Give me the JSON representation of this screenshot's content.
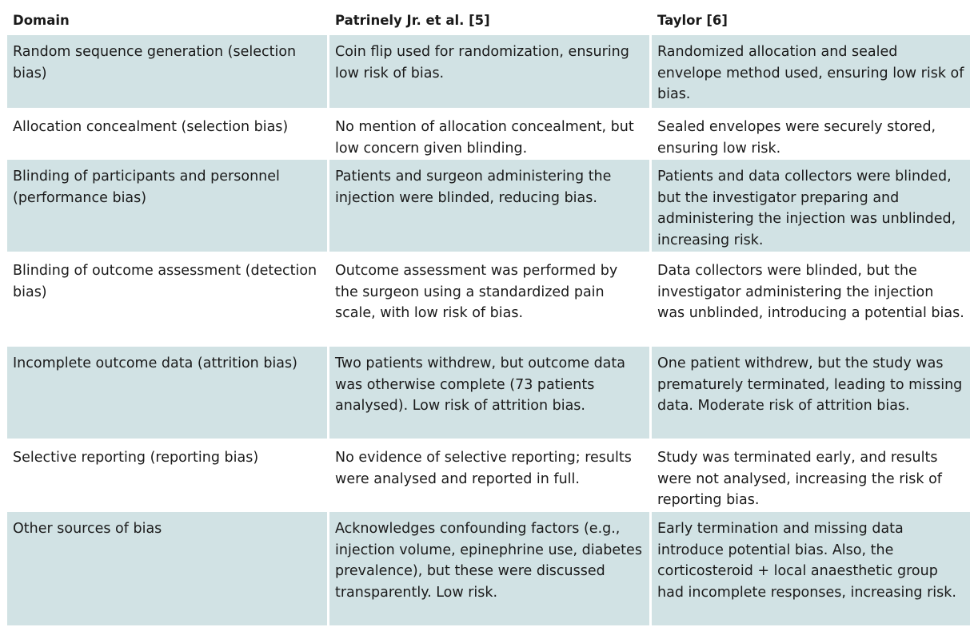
{
  "table": {
    "headers": [
      "Domain",
      "Patrinely Jr. et al. [5]",
      "Taylor [6]"
    ],
    "rows": [
      {
        "domain": "Random sequence generation (selection bias)",
        "patrinely": "Coin flip used for randomization, ensuring low risk of bias.",
        "taylor": "Randomized allocation and sealed envelope method used, ensuring low risk of bias."
      },
      {
        "domain": "Allocation concealment (selection bias)",
        "patrinely": "No mention of allocation concealment, but low concern given blinding.",
        "taylor": "Sealed envelopes were securely stored, ensuring low risk."
      },
      {
        "domain": "Blinding of participants and personnel (performance bias)",
        "patrinely": "Patients and surgeon administering the injection were blinded, reducing bias.",
        "taylor": "Patients and data collectors were blinded, but the investigator preparing and administering the injection was unblinded, increasing risk."
      },
      {
        "domain": "Blinding of outcome assessment (detection bias)",
        "patrinely": "Outcome assessment was performed by the surgeon using a standardized pain scale, with low risk of bias.",
        "taylor": "Data collectors were blinded, but the investigator administering the injection was unblinded, introducing a potential bias."
      },
      {
        "domain": "Incomplete outcome data (attrition bias)",
        "patrinely": "Two patients withdrew, but outcome data was otherwise complete (73 patients analysed). Low risk of attrition bias.",
        "taylor": "One patient withdrew, but the study was prematurely terminated, leading to missing data. Moderate risk of attrition bias."
      },
      {
        "domain": "Selective reporting (reporting bias)",
        "patrinely": "No evidence of selective reporting; results were analysed and reported in full.",
        "taylor": "Study was terminated early, and results were not analysed, increasing the risk of reporting bias."
      },
      {
        "domain": "Other sources of bias",
        "patrinely": "Acknowledges confounding factors (e.g., injection volume, epinephrine use, diabetes prevalence), but these were discussed transparently. Low risk.",
        "taylor": "Early termination and missing data introduce potential bias. Also, the corticosteroid + local anaesthetic group had incomplete responses, increasing risk."
      }
    ]
  },
  "colors": {
    "row_shade": "#d1e2e4",
    "background": "#ffffff",
    "text": "#1a1a1a"
  }
}
